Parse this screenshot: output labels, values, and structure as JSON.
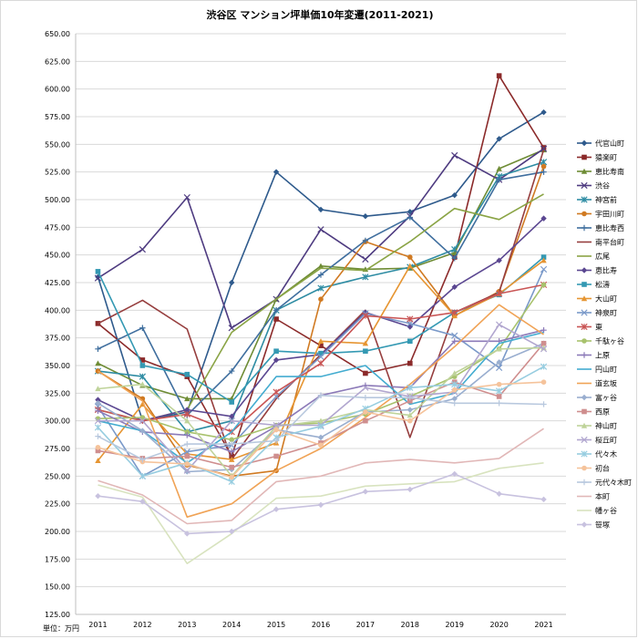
{
  "chart_data": {
    "type": "line",
    "title": "渋谷区 マンション坪単価10年変遷(2011-2021)",
    "unit_label": "単位：万円",
    "categories": [
      "2011",
      "2012",
      "2013",
      "2014",
      "2015",
      "2016",
      "2017",
      "2018",
      "2019",
      "2020",
      "2021"
    ],
    "ylim": [
      125,
      650
    ],
    "ytick_step": 25,
    "grid": true,
    "legend_position": "right",
    "series": [
      {
        "name": "代官山町",
        "color": "#2E5A8C",
        "marker": "diamond",
        "values": [
          430,
          300,
          308,
          425,
          525,
          491,
          485,
          489,
          504,
          555,
          579
        ]
      },
      {
        "name": "猿楽町",
        "color": "#8B2A2A",
        "marker": "square",
        "values": [
          388,
          355,
          340,
          268,
          392,
          368,
          343,
          352,
          448,
          612,
          547
        ]
      },
      {
        "name": "恵比寿南",
        "color": "#6E8C35",
        "marker": "triangle",
        "values": [
          352,
          332,
          320,
          320,
          410,
          440,
          437,
          438,
          452,
          528,
          545
        ]
      },
      {
        "name": "渋谷",
        "color": "#4E3B80",
        "marker": "x",
        "values": [
          429,
          455,
          502,
          384,
          410,
          473,
          446,
          485,
          540,
          518,
          546
        ]
      },
      {
        "name": "神宮前",
        "color": "#2E8CA3",
        "marker": "asterisk",
        "values": [
          345,
          340,
          290,
          300,
          400,
          420,
          430,
          439,
          455,
          521,
          534
        ]
      },
      {
        "name": "宇田川町",
        "color": "#D07A22",
        "marker": "circle",
        "values": [
          345,
          320,
          260,
          250,
          255,
          410,
          462,
          448,
          395,
          417,
          530
        ]
      },
      {
        "name": "恵比寿西",
        "color": "#3F6E9E",
        "marker": "plus",
        "values": [
          365,
          384,
          305,
          345,
          400,
          432,
          463,
          484,
          447,
          518,
          525
        ]
      },
      {
        "name": "南平台町",
        "color": "#963E3E",
        "marker": "none",
        "values": [
          388,
          409,
          383,
          265,
          320,
          360,
          400,
          285,
          398,
          416,
          545
        ]
      },
      {
        "name": "広尾",
        "color": "#8AA445",
        "marker": "none",
        "values": [
          310,
          300,
          310,
          380,
          410,
          438,
          436,
          462,
          492,
          482,
          505
        ]
      },
      {
        "name": "恵比寿",
        "color": "#5B4791",
        "marker": "diamond",
        "values": [
          319,
          300,
          310,
          304,
          355,
          360,
          398,
          385,
          421,
          445,
          483
        ]
      },
      {
        "name": "松濤",
        "color": "#3499B3",
        "marker": "square",
        "values": [
          435,
          350,
          342,
          317,
          363,
          361,
          363,
          372,
          398,
          414,
          448
        ]
      },
      {
        "name": "大山町",
        "color": "#E69532",
        "marker": "triangle",
        "values": [
          264,
          315,
          270,
          265,
          280,
          372,
          370,
          440,
          395,
          415,
          445
        ]
      },
      {
        "name": "神泉町",
        "color": "#7A99C9",
        "marker": "x",
        "values": [
          313,
          250,
          272,
          278,
          322,
          358,
          397,
          388,
          377,
          348,
          437
        ]
      },
      {
        "name": "東",
        "color": "#C95555",
        "marker": "asterisk",
        "values": [
          310,
          300,
          306,
          290,
          326,
          352,
          395,
          392,
          398,
          415,
          423
        ]
      },
      {
        "name": "千駄ヶ谷",
        "color": "#A8C26D",
        "marker": "circle",
        "values": [
          302,
          303,
          290,
          283,
          296,
          298,
          306,
          322,
          340,
          365,
          423
        ]
      },
      {
        "name": "上原",
        "color": "#8C7AB8",
        "marker": "plus",
        "values": [
          309,
          290,
          287,
          272,
          295,
          323,
          332,
          330,
          372,
          372,
          382
        ]
      },
      {
        "name": "円山町",
        "color": "#43ACD0",
        "marker": "none",
        "values": [
          300,
          291,
          262,
          290,
          340,
          340,
          350,
          315,
          325,
          370,
          380
        ]
      },
      {
        "name": "道玄坂",
        "color": "#F0A356",
        "marker": "none",
        "values": [
          345,
          318,
          213,
          225,
          255,
          275,
          303,
          333,
          367,
          405,
          378
        ]
      },
      {
        "name": "富ヶ谷",
        "color": "#99AECF",
        "marker": "diamond",
        "values": [
          316,
          291,
          254,
          256,
          292,
          285,
          308,
          310,
          320,
          353,
          370
        ]
      },
      {
        "name": "西原",
        "color": "#CF8E8E",
        "marker": "square",
        "values": [
          273,
          266,
          268,
          258,
          268,
          280,
          300,
          318,
          335,
          322,
          370
        ]
      },
      {
        "name": "神山町",
        "color": "#BFD39A",
        "marker": "triangle",
        "values": [
          329,
          333,
          300,
          250,
          295,
          300,
          310,
          305,
          343,
          365,
          366
        ]
      },
      {
        "name": "桜丘町",
        "color": "#B1A6CF",
        "marker": "x",
        "values": [
          300,
          300,
          255,
          300,
          296,
          296,
          330,
          322,
          326,
          387,
          365
        ]
      },
      {
        "name": "代々木",
        "color": "#97CDE0",
        "marker": "asterisk",
        "values": [
          294,
          250,
          262,
          245,
          285,
          295,
          311,
          330,
          333,
          327,
          349
        ]
      },
      {
        "name": "初台",
        "color": "#F5C39B",
        "marker": "circle",
        "values": [
          276,
          263,
          261,
          249,
          292,
          278,
          308,
          300,
          328,
          333,
          335
        ]
      },
      {
        "name": "元代々木町",
        "color": "#B8C8DE",
        "marker": "plus",
        "values": [
          286,
          265,
          279,
          279,
          282,
          323,
          321,
          321,
          316,
          316,
          315
        ]
      },
      {
        "name": "本町",
        "color": "#E1B7B7",
        "marker": "none",
        "values": [
          246,
          233,
          207,
          210,
          245,
          250,
          262,
          265,
          262,
          266,
          293
        ]
      },
      {
        "name": "幡ヶ谷",
        "color": "#D8E3BF",
        "marker": "none",
        "values": [
          242,
          231,
          171,
          198,
          230,
          232,
          241,
          243,
          245,
          257,
          262
        ]
      },
      {
        "name": "笹塚",
        "color": "#C8C2DF",
        "marker": "diamond",
        "values": [
          232,
          227,
          198,
          200,
          220,
          224,
          236,
          238,
          252,
          234,
          229
        ]
      }
    ]
  }
}
